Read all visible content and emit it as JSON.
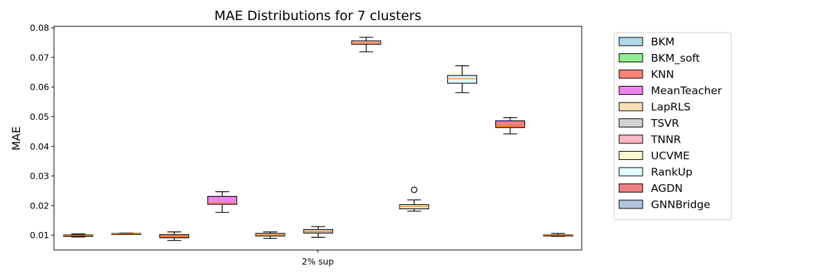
{
  "chart_data": {
    "type": "box",
    "title": "MAE Distributions for 7 clusters",
    "xlabel": "",
    "ylabel": "MAE",
    "categories": [
      "2% sup"
    ],
    "ylim": [
      0.005,
      0.0805
    ],
    "yticks": [
      0.01,
      0.02,
      0.03,
      0.04,
      0.05,
      0.06,
      0.07,
      0.08
    ],
    "ytick_labels": [
      "0.01",
      "0.02",
      "0.03",
      "0.04",
      "0.05",
      "0.06",
      "0.07",
      "0.08"
    ],
    "grid": false,
    "legend_position": "outside-right",
    "median_color": "#ff7f0e",
    "series": [
      {
        "name": "BKM",
        "color": "#add8e6",
        "whisker_low": 0.0094,
        "q1": 0.0096,
        "median": 0.0099,
        "q3": 0.0101,
        "whisker_high": 0.0104,
        "outliers": []
      },
      {
        "name": "BKM_soft",
        "color": "#90ee90",
        "whisker_low": 0.0103,
        "q1": 0.0104,
        "median": 0.0105,
        "q3": 0.0106,
        "whisker_high": 0.0107,
        "outliers": []
      },
      {
        "name": "KNN",
        "color": "#fa8072",
        "whisker_low": 0.0082,
        "q1": 0.0091,
        "median": 0.0096,
        "q3": 0.0102,
        "whisker_high": 0.0111,
        "outliers": []
      },
      {
        "name": "MeanTeacher",
        "color": "#ee82ee",
        "whisker_low": 0.0177,
        "q1": 0.0204,
        "median": 0.0209,
        "q3": 0.0231,
        "whisker_high": 0.0247,
        "outliers": []
      },
      {
        "name": "LapRLS",
        "color": "#f5deb3",
        "whisker_low": 0.0089,
        "q1": 0.0097,
        "median": 0.0101,
        "q3": 0.0106,
        "whisker_high": 0.0111,
        "outliers": []
      },
      {
        "name": "TSVR",
        "color": "#d3d3d3",
        "whisker_low": 0.0093,
        "q1": 0.0107,
        "median": 0.0112,
        "q3": 0.0119,
        "whisker_high": 0.0129,
        "outliers": []
      },
      {
        "name": "TNNR",
        "color": "#ffb6c1",
        "whisker_low": 0.0719,
        "q1": 0.0744,
        "median": 0.0749,
        "q3": 0.0756,
        "whisker_high": 0.0768,
        "outliers": []
      },
      {
        "name": "UCVME",
        "color": "#fffacd",
        "whisker_low": 0.0181,
        "q1": 0.0189,
        "median": 0.0197,
        "q3": 0.0203,
        "whisker_high": 0.0219,
        "outliers": [
          0.0253
        ]
      },
      {
        "name": "RankUp",
        "color": "#e0ffff",
        "whisker_low": 0.0581,
        "q1": 0.0613,
        "median": 0.0628,
        "q3": 0.0639,
        "whisker_high": 0.0672,
        "outliers": []
      },
      {
        "name": "AGDN",
        "color": "#f08080",
        "whisker_low": 0.0442,
        "q1": 0.0463,
        "median": 0.0467,
        "q3": 0.0486,
        "whisker_high": 0.0497,
        "outliers": []
      },
      {
        "name": "GNNBridge",
        "color": "#b0c4de",
        "whisker_low": 0.0096,
        "q1": 0.0097,
        "median": 0.0099,
        "q3": 0.0101,
        "whisker_high": 0.0106,
        "outliers": []
      }
    ]
  }
}
